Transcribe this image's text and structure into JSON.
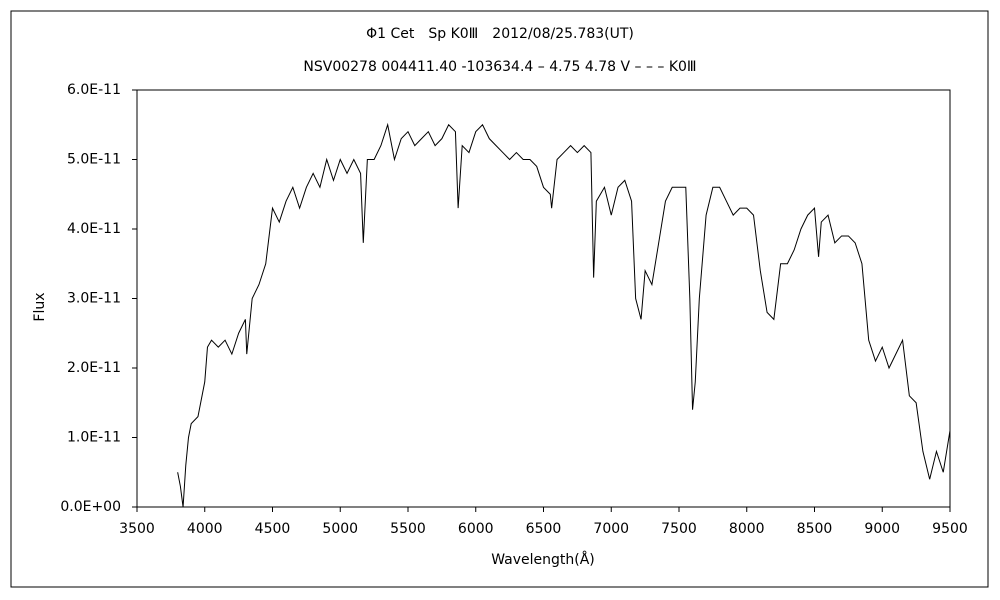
{
  "chart_data": {
    "type": "line",
    "title": "Φ1 Cet　Sp K0Ⅲ　2012/08/25.783(UT)",
    "subtitle": "NSV00278 004411.40 -103634.4 – 4.75 4.78 V – – – K0Ⅲ",
    "x_label": "Wavelength(Å)",
    "y_label": "Flux",
    "color": "#000000",
    "x": [
      3800,
      3820,
      3840,
      3860,
      3880,
      3900,
      3950,
      4000,
      4020,
      4050,
      4100,
      4150,
      4200,
      4250,
      4300,
      4310,
      4350,
      4400,
      4450,
      4500,
      4550,
      4600,
      4650,
      4700,
      4750,
      4800,
      4850,
      4900,
      4950,
      5000,
      5050,
      5100,
      5150,
      5170,
      5200,
      5250,
      5300,
      5350,
      5400,
      5450,
      5500,
      5550,
      5600,
      5650,
      5700,
      5750,
      5800,
      5850,
      5870,
      5900,
      5950,
      6000,
      6050,
      6100,
      6150,
      6200,
      6250,
      6300,
      6350,
      6400,
      6450,
      6500,
      6550,
      6560,
      6600,
      6650,
      6700,
      6750,
      6800,
      6850,
      6870,
      6890,
      6950,
      7000,
      7050,
      7100,
      7150,
      7180,
      7220,
      7250,
      7300,
      7350,
      7400,
      7450,
      7500,
      7550,
      7580,
      7600,
      7620,
      7650,
      7700,
      7750,
      7800,
      7850,
      7900,
      7950,
      8000,
      8050,
      8100,
      8150,
      8200,
      8250,
      8300,
      8350,
      8400,
      8450,
      8500,
      8530,
      8550,
      8600,
      8650,
      8700,
      8750,
      8800,
      8850,
      8900,
      8950,
      9000,
      9050,
      9100,
      9150,
      9200,
      9250,
      9300,
      9350,
      9400,
      9450,
      9500
    ],
    "values": [
      5e-12,
      3e-12,
      0,
      6e-12,
      1e-11,
      1.2e-11,
      1.3e-11,
      1.8e-11,
      2.3e-11,
      2.4e-11,
      2.3e-11,
      2.4e-11,
      2.2e-11,
      2.5e-11,
      2.7e-11,
      2.2e-11,
      3e-11,
      3.2e-11,
      3.5e-11,
      4.3e-11,
      4.1e-11,
      4.4e-11,
      4.6e-11,
      4.3e-11,
      4.6e-11,
      4.8e-11,
      4.6e-11,
      5e-11,
      4.7e-11,
      5e-11,
      4.8e-11,
      5e-11,
      4.8e-11,
      3.8e-11,
      5e-11,
      5e-11,
      5.2e-11,
      5.5e-11,
      5e-11,
      5.3e-11,
      5.4e-11,
      5.2e-11,
      5.3e-11,
      5.4e-11,
      5.2e-11,
      5.3e-11,
      5.5e-11,
      5.4e-11,
      4.3e-11,
      5.2e-11,
      5.1e-11,
      5.4e-11,
      5.5e-11,
      5.3e-11,
      5.2e-11,
      5.1e-11,
      5e-11,
      5.1e-11,
      5e-11,
      5e-11,
      4.9e-11,
      4.6e-11,
      4.5e-11,
      4.3e-11,
      5e-11,
      5.1e-11,
      5.2e-11,
      5.1e-11,
      5.2e-11,
      5.1e-11,
      3.3e-11,
      4.4e-11,
      4.6e-11,
      4.2e-11,
      4.6e-11,
      4.7e-11,
      4.4e-11,
      3e-11,
      2.7e-11,
      3.4e-11,
      3.2e-11,
      3.8e-11,
      4.4e-11,
      4.6e-11,
      4.6e-11,
      4.6e-11,
      3e-11,
      1.4e-11,
      1.8e-11,
      3e-11,
      4.2e-11,
      4.6e-11,
      4.6e-11,
      4.4e-11,
      4.2e-11,
      4.3e-11,
      4.3e-11,
      4.2e-11,
      3.4e-11,
      2.8e-11,
      2.7e-11,
      3.5e-11,
      3.5e-11,
      3.7e-11,
      4e-11,
      4.2e-11,
      4.3e-11,
      3.6e-11,
      4.1e-11,
      4.2e-11,
      3.8e-11,
      3.9e-11,
      3.9e-11,
      3.8e-11,
      3.5e-11,
      2.4e-11,
      2.1e-11,
      2.3e-11,
      2e-11,
      2.2e-11,
      2.4e-11,
      1.6e-11,
      1.5e-11,
      8e-12,
      4e-12,
      8e-12,
      5e-12,
      1.1e-11
    ],
    "xlim": [
      3500,
      9500
    ],
    "xticks": [
      3500,
      4000,
      4500,
      5000,
      5500,
      6000,
      6500,
      7000,
      7500,
      8000,
      8500,
      9000,
      9500
    ],
    "ylim": [
      0,
      6e-11
    ],
    "yticks": [
      {
        "value": 0,
        "label": "0.0E+00"
      },
      {
        "value": 1e-11,
        "label": "1.0E-11"
      },
      {
        "value": 2e-11,
        "label": "2.0E-11"
      },
      {
        "value": 3e-11,
        "label": "3.0E-11"
      },
      {
        "value": 4e-11,
        "label": "4.0E-11"
      },
      {
        "value": 5e-11,
        "label": "5.0E-11"
      },
      {
        "value": 6e-11,
        "label": "6.0E-11"
      }
    ],
    "grid": false
  }
}
